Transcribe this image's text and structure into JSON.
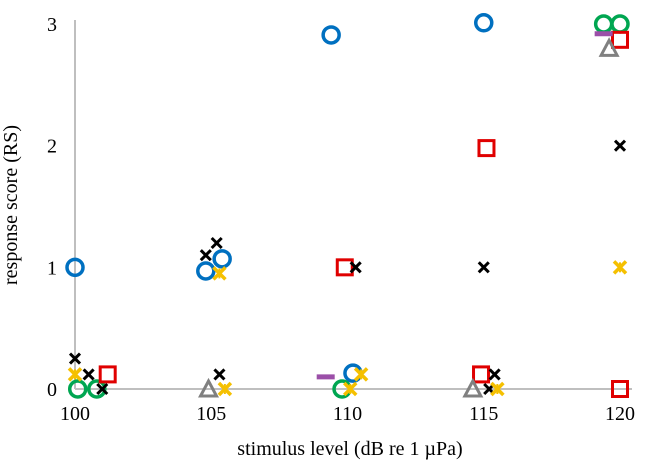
{
  "chart_data": {
    "type": "scatter",
    "xlabel": "stimulus level (dB re 1 µPa)",
    "ylabel": "response score (RS)",
    "xlim": [
      100,
      120
    ],
    "ylim": [
      0,
      3
    ],
    "xticks": [
      "100",
      "105",
      "110",
      "115",
      "120"
    ],
    "yticks": [
      "0",
      "1",
      "2",
      "3"
    ],
    "grid": false,
    "series": [
      {
        "marker": "circle-open",
        "color": "#0070c0",
        "points": [
          [
            100,
            1.0
          ],
          [
            104.8,
            0.97
          ],
          [
            105.4,
            1.07
          ],
          [
            109.4,
            2.91
          ],
          [
            110.2,
            0.13
          ],
          [
            115.0,
            3.01
          ]
        ]
      },
      {
        "marker": "circle-open",
        "color": "#00a651",
        "points": [
          [
            100.1,
            0.0
          ],
          [
            100.8,
            0.0
          ],
          [
            109.8,
            0.0
          ],
          [
            119.4,
            3.0
          ],
          [
            120.0,
            3.0
          ]
        ]
      },
      {
        "marker": "square-open",
        "color": "#e00000",
        "points": [
          [
            101.2,
            0.12
          ],
          [
            109.9,
            1.0
          ],
          [
            114.9,
            0.12
          ],
          [
            115.1,
            1.98
          ],
          [
            120.0,
            2.87
          ],
          [
            120.0,
            0.0
          ]
        ]
      },
      {
        "marker": "x",
        "color": "#000000",
        "points": [
          [
            100.0,
            0.25
          ],
          [
            100.5,
            0.12
          ],
          [
            101.0,
            0.0
          ],
          [
            104.8,
            1.1
          ],
          [
            105.2,
            1.2
          ],
          [
            105.3,
            0.12
          ],
          [
            110.3,
            1.0
          ],
          [
            115.0,
            1.0
          ],
          [
            115.2,
            0.0
          ],
          [
            115.4,
            0.12
          ],
          [
            120.0,
            2.0
          ]
        ]
      },
      {
        "marker": "asterisk",
        "color": "#f5c000",
        "points": [
          [
            100.0,
            0.12
          ],
          [
            105.3,
            0.95
          ],
          [
            105.5,
            0.0
          ],
          [
            110.1,
            0.0
          ],
          [
            110.5,
            0.12
          ],
          [
            115.5,
            0.0
          ],
          [
            120.0,
            1.0
          ]
        ]
      },
      {
        "marker": "triangle-open",
        "color": "#808080",
        "points": [
          [
            104.9,
            0.0
          ],
          [
            114.6,
            0.0
          ],
          [
            119.6,
            2.8
          ]
        ]
      },
      {
        "marker": "dash",
        "color": "#9b4fa8",
        "points": [
          [
            109.2,
            0.1
          ],
          [
            119.4,
            2.92
          ]
        ]
      }
    ]
  }
}
